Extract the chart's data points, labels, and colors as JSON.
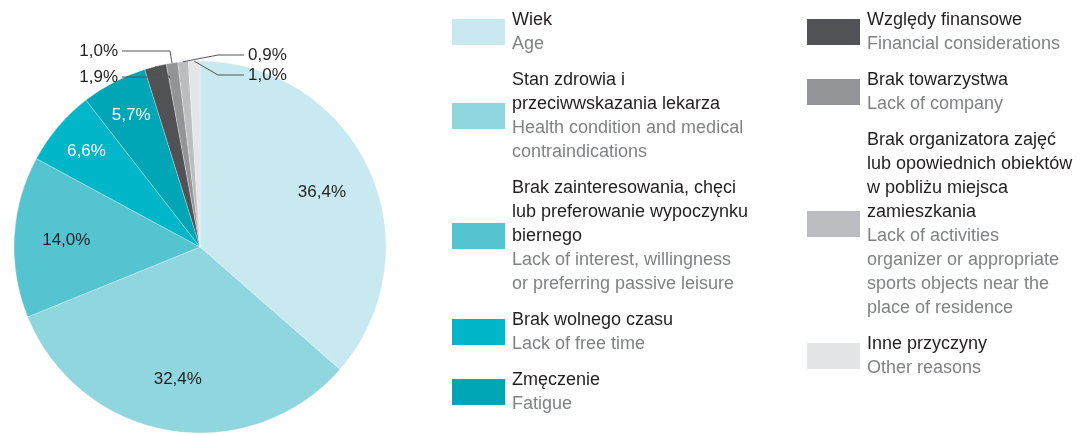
{
  "chart_data": {
    "type": "pie",
    "categories": [
      "Wiek\nAge",
      "Stan zdrowia i przeciwwskazania lekarza\nHealth condition and medical contraindications",
      "Brak zainteresowania, chęci lub preferowanie wypoczynku biernego\nLack of interest, willingness or preferring passive leisure",
      "Brak wolnego czasu\nLack of free time",
      "Zmęczenie\nFatigue",
      "Względy finansowe\nFinancial considerations",
      "Brak towarzystwa\nLack of company",
      "Brak organizatora zajęć lub opowiednich obiektów w pobliżu miejsca zamieszkania\nLack of activities organizer or appropriate sports objects near the place of residence",
      "Inne przyczyny\nOther reasons"
    ],
    "values": [
      36.4,
      32.4,
      14.0,
      6.6,
      5.7,
      1.9,
      1.0,
      0.9,
      1.0
    ],
    "value_labels": [
      "36,4%",
      "32,4%",
      "14,0%",
      "6,6%",
      "5,7%",
      "1,9%",
      "1,0%",
      "0,9%",
      "1,0%"
    ],
    "colors": [
      "#c8e9ef",
      "#8fd6df",
      "#55c4d1",
      "#00b6c8",
      "#00a5b6",
      "#505256",
      "#929497",
      "#bbbdc0",
      "#e4e5e7"
    ],
    "legend": "right"
  }
}
